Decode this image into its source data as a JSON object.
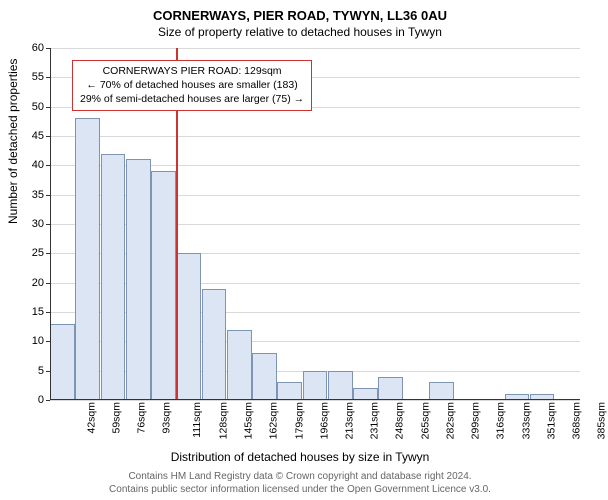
{
  "title_main": "CORNERWAYS, PIER ROAD, TYWYN, LL36 0AU",
  "title_sub": "Size of property relative to detached houses in Tywyn",
  "chart": {
    "type": "histogram",
    "ylabel": "Number of detached properties",
    "xlabel": "Distribution of detached houses by size in Tywyn",
    "ylim": [
      0,
      60
    ],
    "ytick_step": 5,
    "bar_fill": "#dbe5f4",
    "bar_stroke": "#7f93b3",
    "grid_color": "#d9d9d9",
    "background_color": "#ffffff",
    "categories": [
      "42sqm",
      "59sqm",
      "76sqm",
      "93sqm",
      "111sqm",
      "128sqm",
      "145sqm",
      "162sqm",
      "179sqm",
      "196sqm",
      "213sqm",
      "231sqm",
      "248sqm",
      "265sqm",
      "282sqm",
      "299sqm",
      "316sqm",
      "333sqm",
      "351sqm",
      "368sqm",
      "385sqm"
    ],
    "values": [
      13,
      48,
      42,
      41,
      39,
      25,
      19,
      12,
      8,
      3,
      5,
      5,
      2,
      4,
      0,
      3,
      0,
      0,
      1,
      1,
      0
    ],
    "ref": {
      "index_after": 5,
      "color": "#cc3333",
      "lines": [
        "CORNERWAYS PIER ROAD: 129sqm",
        "← 70% of detached houses are smaller (183)",
        "29% of semi-detached houses are larger (75) →"
      ]
    }
  },
  "footer1": "Contains HM Land Registry data © Crown copyright and database right 2024.",
  "footer2": "Contains public sector information licensed under the Open Government Licence v3.0."
}
